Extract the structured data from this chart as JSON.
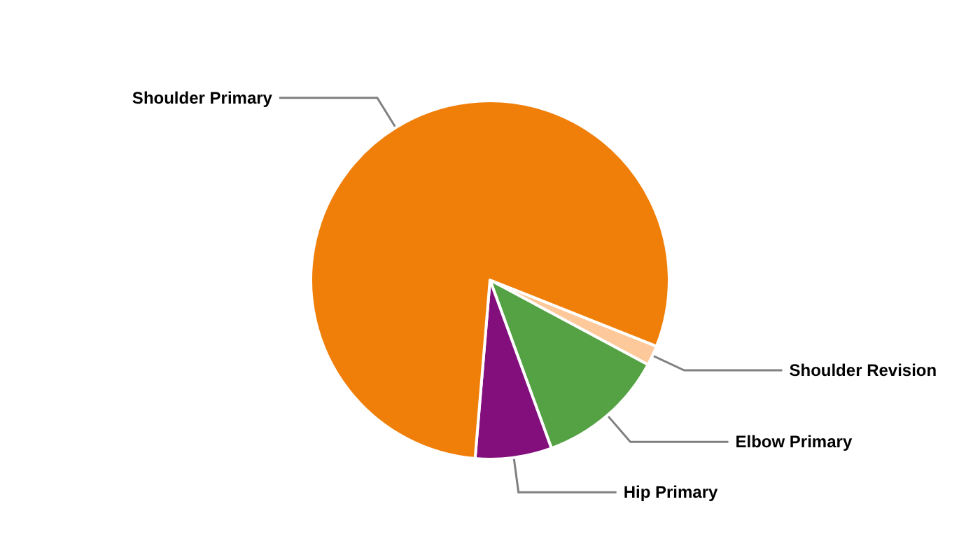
{
  "chart_data": {
    "type": "pie",
    "categories": [
      "Shoulder Revision",
      "Elbow Primary",
      "Hip Primary",
      "Shoulder Primary"
    ],
    "values": [
      1.8,
      11.6,
      6.9,
      79.7
    ],
    "colors": [
      "#fdc99a",
      "#54a244",
      "#820f7b",
      "#f07f09"
    ],
    "legend": false
  }
}
